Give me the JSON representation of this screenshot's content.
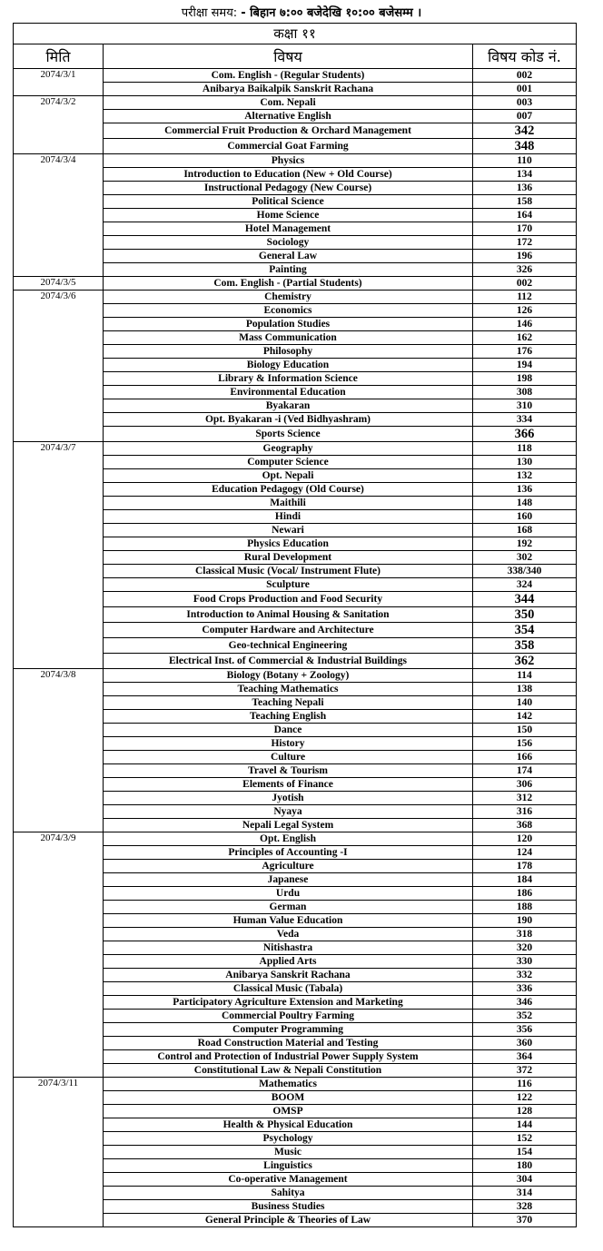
{
  "exam_time": {
    "label": "परीक्षा समय: ",
    "value": "- बिहान ७:०० बजेदेखि १०:०० बजेसम्म ।"
  },
  "class_title": "कक्षा ११",
  "columns": {
    "date": "मिति",
    "subject": "विषय",
    "code": "विषय कोड नं."
  },
  "groups": [
    {
      "date": "2074/3/1",
      "rows": [
        {
          "subject": "Com. English -  (Regular Students)",
          "code": "002"
        },
        {
          "subject": "Anibarya Baikalpik Sanskrit Rachana",
          "code": "001"
        }
      ]
    },
    {
      "date": "2074/3/2",
      "rows": [
        {
          "subject": "Com. Nepali",
          "code": "003"
        },
        {
          "subject": "Alternative English",
          "code": "007"
        },
        {
          "subject": "Commercial Fruit Production & Orchard Management",
          "code": "342",
          "large_code": true
        },
        {
          "subject": "Commercial Goat Farming",
          "code": "348",
          "large_code": true
        }
      ]
    },
    {
      "date": "2074/3/4",
      "rows": [
        {
          "subject": "Physics",
          "code": "110"
        },
        {
          "subject": "Introduction to Education (New + Old Course)",
          "code": "134"
        },
        {
          "subject": "Instructional Pedagogy (New Course)",
          "code": "136"
        },
        {
          "subject": "Political Science",
          "code": "158"
        },
        {
          "subject": "Home Science",
          "code": "164"
        },
        {
          "subject": "Hotel Management",
          "code": "170"
        },
        {
          "subject": "Sociology",
          "code": "172"
        },
        {
          "subject": "General Law",
          "code": "196"
        },
        {
          "subject": "Painting",
          "code": "326"
        }
      ]
    },
    {
      "date": "2074/3/5",
      "rows": [
        {
          "subject": "Com. English -  (Partial Students)",
          "code": "002"
        }
      ]
    },
    {
      "date": "2074/3/6",
      "rows": [
        {
          "subject": "Chemistry",
          "code": "112"
        },
        {
          "subject": "Economics",
          "code": "126"
        },
        {
          "subject": "Population Studies",
          "code": "146"
        },
        {
          "subject": "Mass Communication",
          "code": "162"
        },
        {
          "subject": "Philosophy",
          "code": "176"
        },
        {
          "subject": "Biology Education",
          "code": "194"
        },
        {
          "subject": "Library & Information Science",
          "code": "198"
        },
        {
          "subject": "Environmental Education",
          "code": "308"
        },
        {
          "subject": "Byakaran",
          "code": "310"
        },
        {
          "subject": "Opt. Byakaran -i (Ved Bidhyashram)",
          "code": "334"
        },
        {
          "subject": "Sports Science",
          "code": "366",
          "large_code": true
        }
      ]
    },
    {
      "date": "2074/3/7",
      "rows": [
        {
          "subject": "Geography",
          "code": "118"
        },
        {
          "subject": "Computer Science",
          "code": "130"
        },
        {
          "subject": "Opt. Nepali",
          "code": "132"
        },
        {
          "subject": "Education Pedagogy (Old Course)",
          "code": "136"
        },
        {
          "subject": "Maithili",
          "code": "148"
        },
        {
          "subject": "Hindi",
          "code": "160"
        },
        {
          "subject": "Newari",
          "code": "168"
        },
        {
          "subject": "Physics Education",
          "code": "192"
        },
        {
          "subject": "Rural Development",
          "code": "302"
        },
        {
          "subject": "Classical Music (Vocal/ Instrument  Flute)",
          "code": "338/340"
        },
        {
          "subject": "Sculpture",
          "code": "324"
        },
        {
          "subject": "Food Crops Production and Food Security",
          "code": "344",
          "large_code": true
        },
        {
          "subject": "Introduction to Animal Housing & Sanitation",
          "code": "350",
          "large_code": true
        },
        {
          "subject": "Computer Hardware and Architecture",
          "code": "354",
          "large_code": true
        },
        {
          "subject": "Geo-technical Engineering",
          "code": "358",
          "large_code": true
        },
        {
          "subject": "Electrical Inst. of Commercial & Industrial Buildings",
          "code": "362",
          "large_code": true
        }
      ]
    },
    {
      "date": "2074/3/8",
      "rows": [
        {
          "subject": "Biology  (Botany + Zoology)",
          "code": "114"
        },
        {
          "subject": "Teaching Mathematics",
          "code": "138"
        },
        {
          "subject": "Teaching Nepali",
          "code": "140"
        },
        {
          "subject": "Teaching English",
          "code": "142"
        },
        {
          "subject": "Dance",
          "code": "150"
        },
        {
          "subject": "History",
          "code": "156"
        },
        {
          "subject": "Culture",
          "code": "166"
        },
        {
          "subject": "Travel & Tourism",
          "code": "174"
        },
        {
          "subject": "Elements of Finance",
          "code": "306"
        },
        {
          "subject": "Jyotish",
          "code": "312"
        },
        {
          "subject": "Nyaya",
          "code": "316"
        },
        {
          "subject": "Nepali Legal System",
          "code": "368"
        }
      ]
    },
    {
      "date": "2074/3/9",
      "rows": [
        {
          "subject": "Opt. English",
          "code": "120"
        },
        {
          "subject": "Principles of Accounting -I",
          "code": "124"
        },
        {
          "subject": "Agriculture",
          "code": "178"
        },
        {
          "subject": "Japanese",
          "code": "184"
        },
        {
          "subject": "Urdu",
          "code": "186"
        },
        {
          "subject": "German",
          "code": "188"
        },
        {
          "subject": "Human Value Education",
          "code": "190"
        },
        {
          "subject": "Veda",
          "code": "318"
        },
        {
          "subject": "Nitishastra",
          "code": "320"
        },
        {
          "subject": "Applied Arts",
          "code": "330"
        },
        {
          "subject": "Anibarya Sanskrit Rachana",
          "code": "332"
        },
        {
          "subject": "Classical Music (Tabala)",
          "code": "336"
        },
        {
          "subject": "Participatory Agriculture Extension and Marketing",
          "code": "346"
        },
        {
          "subject": "Commercial Poultry Farming",
          "code": "352"
        },
        {
          "subject": "Computer Programming",
          "code": "356"
        },
        {
          "subject": "Road Construction Material and Testing",
          "code": "360"
        },
        {
          "subject": "Control and Protection of Industrial Power Supply System",
          "code": "364"
        },
        {
          "subject": "Constitutional Law & Nepali Constitution",
          "code": "372"
        }
      ]
    },
    {
      "date": "2074/3/11",
      "rows": [
        {
          "subject": "Mathematics",
          "code": "116"
        },
        {
          "subject": "BOOM",
          "code": "122"
        },
        {
          "subject": "OMSP",
          "code": "128"
        },
        {
          "subject": "Health & Physical Education",
          "code": "144"
        },
        {
          "subject": "Psychology",
          "code": "152"
        },
        {
          "subject": "Music",
          "code": "154"
        },
        {
          "subject": "Linguistics",
          "code": "180"
        },
        {
          "subject": "Co-operative Management",
          "code": "304"
        },
        {
          "subject": "Sahitya",
          "code": "314"
        },
        {
          "subject": "Business Studies",
          "code": "328"
        },
        {
          "subject": "General Principle & Theories of Law",
          "code": "370"
        }
      ]
    }
  ]
}
